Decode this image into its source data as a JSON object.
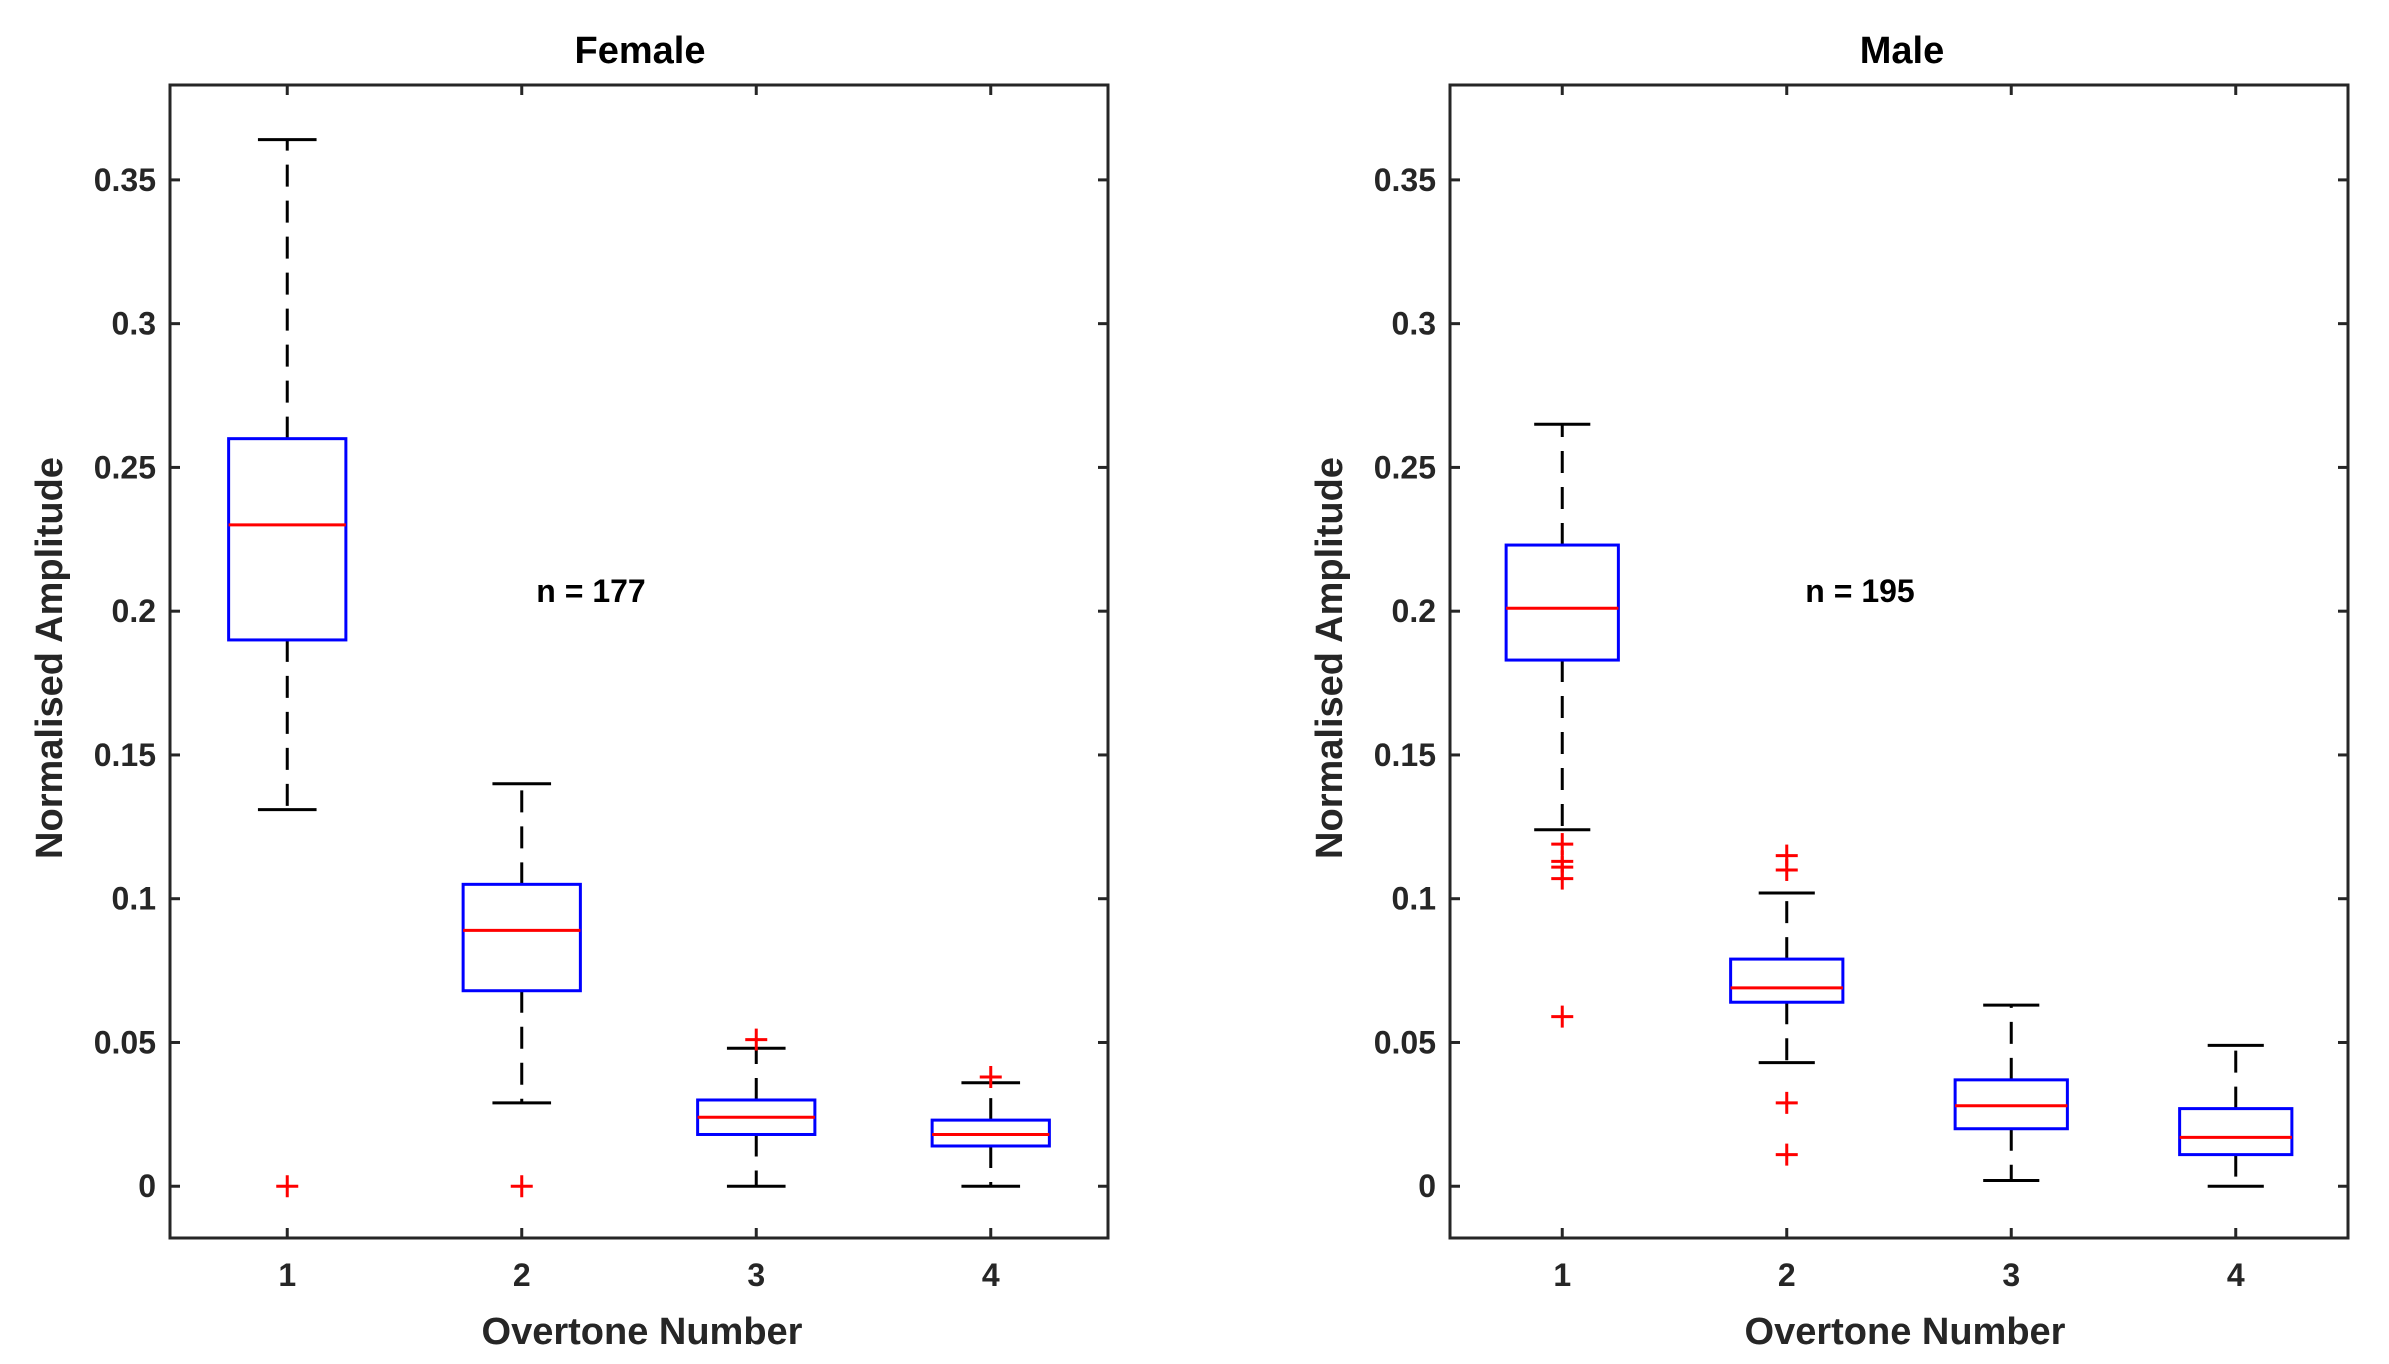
{
  "chart_data": [
    {
      "type": "box",
      "title": "Female",
      "xlabel": "Overtone Number",
      "ylabel": "Normalised Amplitude",
      "annotation": "n = 177",
      "categories": [
        "1",
        "2",
        "3",
        "4"
      ],
      "ylim": [
        -0.018,
        0.383
      ],
      "yticks": [
        0,
        0.05,
        0.1,
        0.15,
        0.2,
        0.25,
        0.3,
        0.35
      ],
      "ytick_labels": [
        "0",
        "0.05",
        "0.1",
        "0.15",
        "0.2",
        "0.25",
        "0.3",
        "0.35"
      ],
      "boxes": [
        {
          "category": "1",
          "whisker_low": 0.131,
          "q1": 0.19,
          "median": 0.23,
          "q3": 0.26,
          "whisker_high": 0.364,
          "outliers": [
            0.0
          ]
        },
        {
          "category": "2",
          "whisker_low": 0.029,
          "q1": 0.068,
          "median": 0.089,
          "q3": 0.105,
          "whisker_high": 0.14,
          "outliers": [
            0.0
          ]
        },
        {
          "category": "3",
          "whisker_low": 0.0,
          "q1": 0.018,
          "median": 0.024,
          "q3": 0.03,
          "whisker_high": 0.048,
          "outliers": [
            0.051
          ]
        },
        {
          "category": "4",
          "whisker_low": 0.0,
          "q1": 0.014,
          "median": 0.018,
          "q3": 0.023,
          "whisker_high": 0.036,
          "outliers": [
            0.038
          ]
        }
      ]
    },
    {
      "type": "box",
      "title": "Male",
      "xlabel": "Overtone Number",
      "ylabel": "Normalised Amplitude",
      "annotation": "n = 195",
      "categories": [
        "1",
        "2",
        "3",
        "4"
      ],
      "ylim": [
        -0.018,
        0.383
      ],
      "yticks": [
        0,
        0.05,
        0.1,
        0.15,
        0.2,
        0.25,
        0.3,
        0.35
      ],
      "ytick_labels": [
        "0",
        "0.05",
        "0.1",
        "0.15",
        "0.2",
        "0.25",
        "0.3",
        "0.35"
      ],
      "boxes": [
        {
          "category": "1",
          "whisker_low": 0.124,
          "q1": 0.183,
          "median": 0.201,
          "q3": 0.223,
          "whisker_high": 0.265,
          "outliers": [
            0.119,
            0.113,
            0.111,
            0.107,
            0.059
          ]
        },
        {
          "category": "2",
          "whisker_low": 0.043,
          "q1": 0.064,
          "median": 0.069,
          "q3": 0.079,
          "whisker_high": 0.102,
          "outliers": [
            0.115,
            0.11,
            0.029,
            0.011
          ]
        },
        {
          "category": "3",
          "whisker_low": 0.002,
          "q1": 0.02,
          "median": 0.028,
          "q3": 0.037,
          "whisker_high": 0.063,
          "outliers": []
        },
        {
          "category": "4",
          "whisker_low": 0.0,
          "q1": 0.011,
          "median": 0.017,
          "q3": 0.027,
          "whisker_high": 0.049,
          "outliers": []
        }
      ]
    }
  ],
  "colors": {
    "box": "#0000ff",
    "median": "#ff0000",
    "outlier": "#ff0000",
    "whisker": "#000000",
    "axis": "#262626"
  }
}
